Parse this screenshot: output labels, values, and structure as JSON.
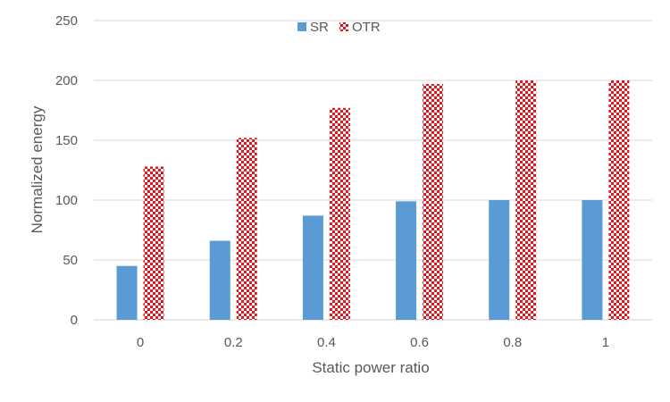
{
  "chart_data": {
    "type": "bar",
    "categories": [
      "0",
      "0.2",
      "0.4",
      "0.6",
      "0.8",
      "1"
    ],
    "series": [
      {
        "name": "SR",
        "values": [
          45,
          66,
          87,
          99,
          100,
          100
        ],
        "color": "#5b9bd5",
        "pattern": "solid"
      },
      {
        "name": "OTR",
        "values": [
          128,
          152,
          177,
          197,
          200,
          200
        ],
        "color": "#e8141b",
        "pattern": "checkerboard"
      }
    ],
    "title": "",
    "xlabel": "Static power ratio",
    "ylabel": "Normalized energy",
    "ylim": [
      0,
      250
    ],
    "yticks": [
      "0",
      "50",
      "100",
      "150",
      "200",
      "250"
    ],
    "grid": true,
    "legend_position": "top-center"
  }
}
